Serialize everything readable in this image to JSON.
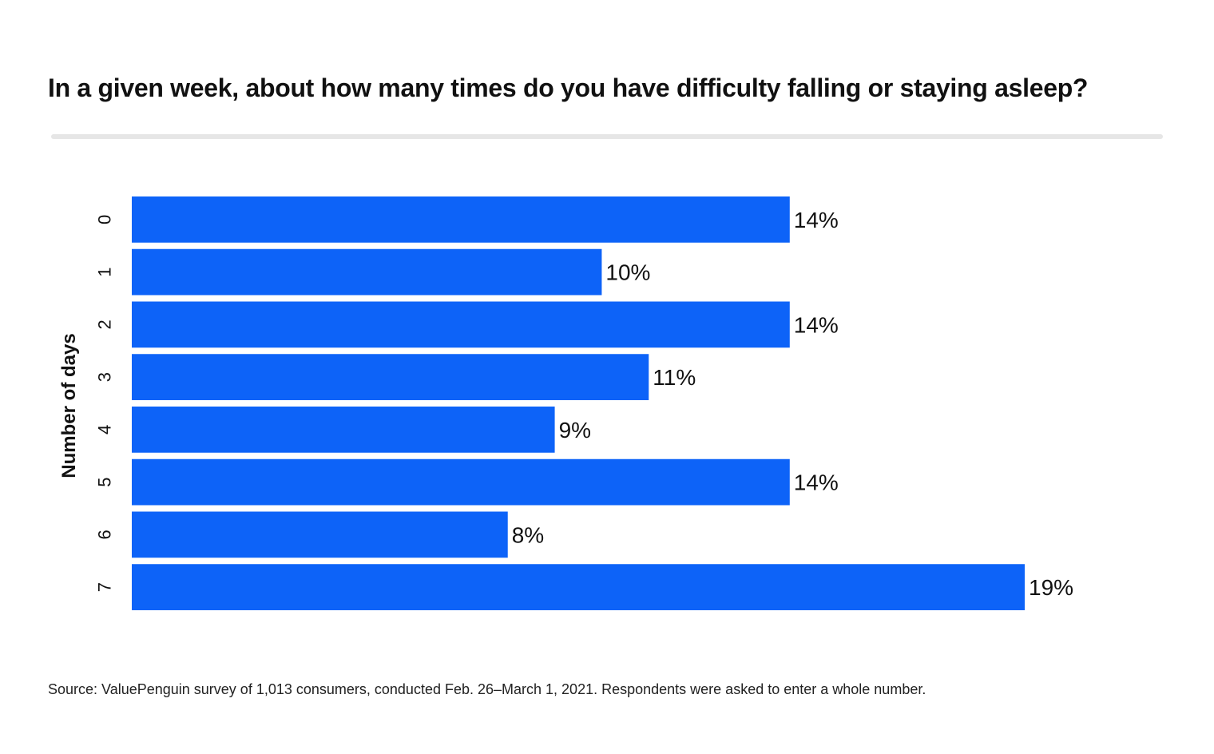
{
  "chart_data": {
    "type": "bar",
    "orientation": "horizontal",
    "title": "In a given week, about how many times do you have difficulty falling or staying asleep?",
    "ylabel": "Number of days",
    "xlabel": "",
    "categories": [
      "0",
      "1",
      "2",
      "3",
      "4",
      "5",
      "6",
      "7"
    ],
    "values": [
      14,
      10,
      14,
      11,
      9,
      14,
      8,
      19
    ],
    "value_labels": [
      "14%",
      "10%",
      "14%",
      "11%",
      "9%",
      "14%",
      "8%",
      "19%"
    ],
    "xlim": [
      0,
      19
    ],
    "bar_color": "#0d63f8",
    "grid": false,
    "source": "Source: ValuePenguin survey of 1,013 consumers, conducted Feb. 26–March 1, 2021. Respondents were asked to enter a whole number."
  }
}
